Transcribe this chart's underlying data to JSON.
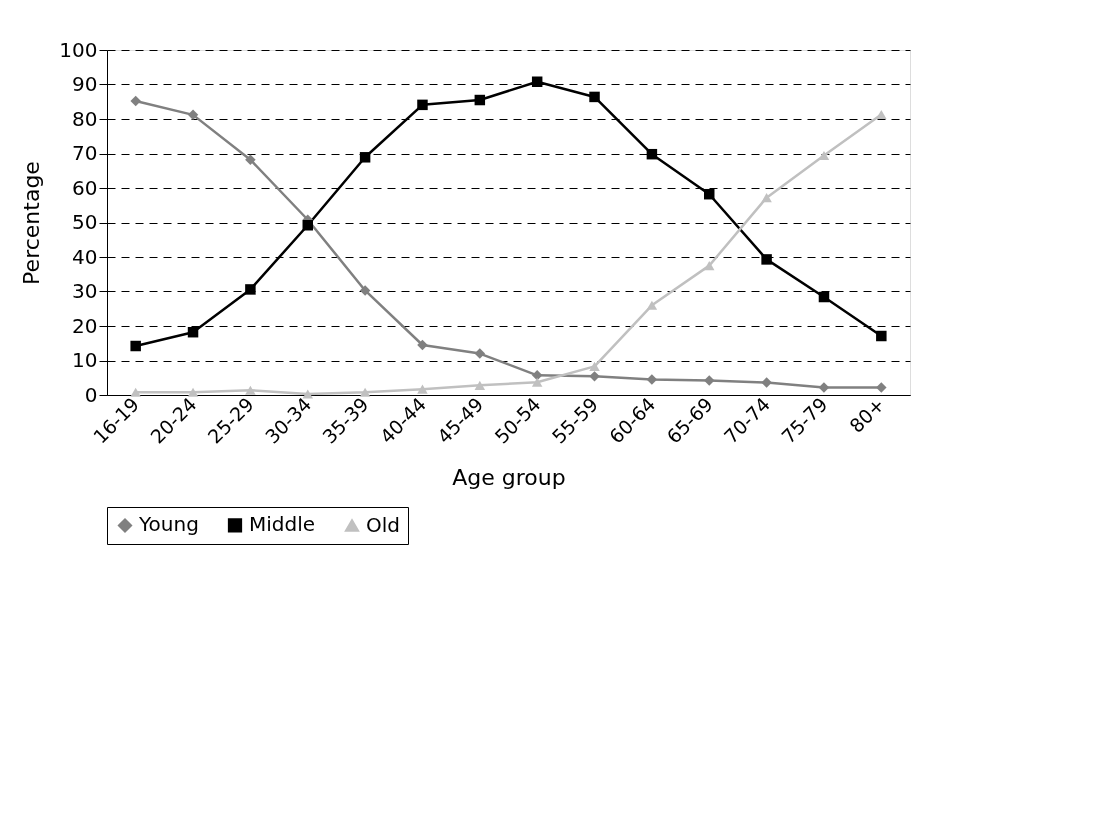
{
  "chart_data": {
    "type": "line",
    "xlabel": "Age group",
    "ylabel": "Percentage",
    "categories": [
      "16-19",
      "20-24",
      "25-29",
      "30-34",
      "35-39",
      "40-44",
      "45-49",
      "50-54",
      "55-59",
      "60-64",
      "65-69",
      "70-74",
      "75-79",
      "80+"
    ],
    "series": [
      {
        "name": "Young",
        "color": "#808080",
        "marker": "diamond",
        "values": [
          85.2,
          81.2,
          68.2,
          50.8,
          30.3,
          14.5,
          12,
          5.7,
          5.4,
          4.5,
          4.2,
          3.6,
          2.2,
          2.2
        ]
      },
      {
        "name": "Middle",
        "color": "#000000",
        "marker": "square",
        "values": [
          14.2,
          18.2,
          30.6,
          49.2,
          68.9,
          84.1,
          85.5,
          90.8,
          86.4,
          69.8,
          58.2,
          39.3,
          28.4,
          17.1
        ]
      },
      {
        "name": "Old",
        "color": "#c0c0c0",
        "marker": "triangle",
        "values": [
          0.8,
          0.8,
          1.4,
          0.3,
          0.8,
          1.7,
          2.8,
          3.7,
          8.3,
          26,
          37.5,
          57.2,
          69.4,
          81.3
        ]
      }
    ],
    "ylim": [
      0,
      100
    ],
    "yticks": [
      0,
      10,
      20,
      30,
      40,
      50,
      60,
      70,
      80,
      90,
      100
    ],
    "grid": "y",
    "legend": "bottom",
    "line_style": "solid"
  }
}
